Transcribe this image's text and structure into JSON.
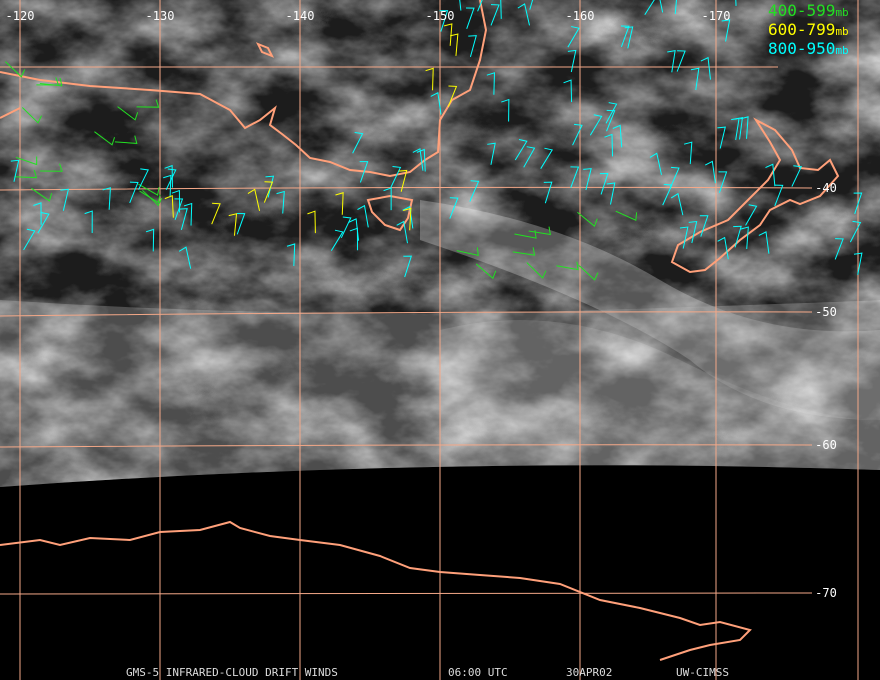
{
  "map": {
    "longitude_labels": [
      "-120",
      "-130",
      "-140",
      "-150",
      "-160",
      "-170"
    ],
    "latitude_labels": [
      "-40",
      "-50",
      "-60",
      "-70"
    ],
    "legend": [
      {
        "range": "400-599",
        "unit": "mb",
        "color": "#22e022"
      },
      {
        "range": "600-799",
        "unit": "mb",
        "color": "#ffff00"
      },
      {
        "range": "800-950",
        "unit": "mb",
        "color": "#00ffff"
      }
    ],
    "footer": [
      "GMS-5 INFRARED-CLOUD DRIFT WINDS",
      "06:00 UTC",
      "30APR02",
      "UW-CIMSS"
    ]
  }
}
